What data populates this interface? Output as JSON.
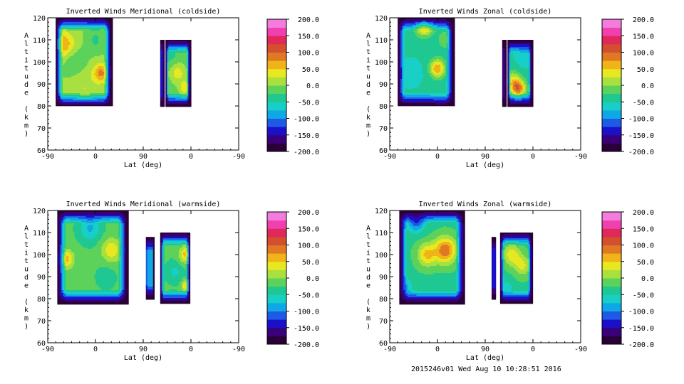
{
  "palette": [
    "#2a0038",
    "#3a007a",
    "#1a10c8",
    "#1e5ae6",
    "#0fa8e6",
    "#18cfc8",
    "#1fc890",
    "#5cd25a",
    "#a8e040",
    "#e8e820",
    "#f0b418",
    "#e07824",
    "#d2502e",
    "#e0285a",
    "#f040b0",
    "#f47cdc"
  ],
  "footer": "2015246v01 Wed Aug 10 10:28:51 2016",
  "chart_data": [
    {
      "type": "heatmap",
      "title": "Inverted Winds Meridional (coldside)",
      "xlabel": "Lat (deg)",
      "ylabel": "Altitude (km)",
      "xticks": [
        "-90",
        "0",
        "90",
        "0",
        "-90"
      ],
      "yticks": [
        "60",
        "70",
        "80",
        "90",
        "100",
        "110",
        "120"
      ],
      "ylim": [
        60,
        120
      ],
      "colorbar_ticks": [
        "200.0",
        "150.0",
        "100.0",
        "50.0",
        "0.0",
        "-50.0",
        "-100.0",
        "-150.0",
        "-200.0"
      ],
      "clim": [
        -200,
        200
      ],
      "regions": [
        {
          "x": [
            -75,
            30
          ],
          "y": [
            80,
            120
          ],
          "base": 0,
          "features": [
            {
              "x": -60,
              "y": 108,
              "v": 70,
              "r": 10
            },
            {
              "x": 10,
              "y": 95,
              "v": 85,
              "r": 7
            },
            {
              "x": -40,
              "y": 100,
              "v": -25,
              "r": 9
            },
            {
              "x": 0,
              "y": 110,
              "v": -30,
              "r": 8
            },
            {
              "x": -20,
              "y": 88,
              "v": 25,
              "r": 12
            }
          ]
        },
        {
          "x": [
            122,
            128
          ],
          "y": [
            80,
            110
          ],
          "base": -130,
          "features": []
        },
        {
          "x": [
            132,
            178
          ],
          "y": [
            80,
            110
          ],
          "base": -15,
          "features": [
            {
              "x": 155,
              "y": 95,
              "v": 35,
              "r": 8
            },
            {
              "x": 170,
              "y": 88,
              "v": 45,
              "r": 6
            },
            {
              "x": 140,
              "y": 103,
              "v": -35,
              "r": 8
            }
          ]
        }
      ]
    },
    {
      "type": "heatmap",
      "title": "Inverted Winds Zonal (coldside)",
      "xlabel": "Lat (deg)",
      "ylabel": "Altitude (km)",
      "xticks": [
        "-90",
        "0",
        "90",
        "0",
        "-90"
      ],
      "yticks": [
        "60",
        "70",
        "80",
        "90",
        "100",
        "110",
        "120"
      ],
      "ylim": [
        60,
        120
      ],
      "colorbar_ticks": [
        "200.0",
        "150.0",
        "100.0",
        "50.0",
        "0.0",
        "-50.0",
        "-100.0",
        "-150.0",
        "-200.0"
      ],
      "clim": [
        -200,
        200
      ],
      "regions": [
        {
          "x": [
            -75,
            30
          ],
          "y": [
            80,
            120
          ],
          "base": -45,
          "features": [
            {
              "x": -25,
              "y": 117,
              "v": 95,
              "r": 8
            },
            {
              "x": 0,
              "y": 97,
              "v": 75,
              "r": 7
            },
            {
              "x": -50,
              "y": 95,
              "v": -75,
              "r": 9
            },
            {
              "x": 15,
              "y": 110,
              "v": -10,
              "r": 8
            }
          ]
        },
        {
          "x": [
            122,
            128
          ],
          "y": [
            80,
            110
          ],
          "base": -160,
          "features": []
        },
        {
          "x": [
            132,
            178
          ],
          "y": [
            80,
            110
          ],
          "base": -45,
          "features": [
            {
              "x": 152,
              "y": 88,
              "v": 95,
              "r": 7
            },
            {
              "x": 140,
              "y": 92,
              "v": 20,
              "r": 7
            },
            {
              "x": 165,
              "y": 103,
              "v": -75,
              "r": 8
            }
          ]
        }
      ]
    },
    {
      "type": "heatmap",
      "title": "Inverted Winds Meridional (warmside)",
      "xlabel": "Lat (deg)",
      "ylabel": "Altitude (km)",
      "xticks": [
        "-90",
        "0",
        "90",
        "0",
        "-90"
      ],
      "yticks": [
        "60",
        "70",
        "80",
        "90",
        "100",
        "110",
        "120"
      ],
      "ylim": [
        60,
        120
      ],
      "colorbar_ticks": [
        "200.0",
        "150.0",
        "100.0",
        "50.0",
        "0.0",
        "-50.0",
        "-100.0",
        "-150.0",
        "-200.0"
      ],
      "clim": [
        -200,
        200
      ],
      "regions": [
        {
          "x": [
            -72,
            60
          ],
          "y": [
            78,
            120
          ],
          "base": -20,
          "features": [
            {
              "x": -55,
              "y": 98,
              "v": 60,
              "r": 7
            },
            {
              "x": 30,
              "y": 102,
              "v": 45,
              "r": 9
            },
            {
              "x": -10,
              "y": 112,
              "v": -80,
              "r": 10
            },
            {
              "x": 20,
              "y": 90,
              "v": -40,
              "r": 9
            }
          ]
        },
        {
          "x": [
            95,
            110
          ],
          "y": [
            80,
            108
          ],
          "base": -95,
          "features": []
        },
        {
          "x": [
            122,
            178
          ],
          "y": [
            78,
            110
          ],
          "base": -20,
          "features": [
            {
              "x": 170,
              "y": 100,
              "v": 60,
              "r": 6
            },
            {
              "x": 150,
              "y": 92,
              "v": -55,
              "r": 8
            },
            {
              "x": 170,
              "y": 86,
              "v": 50,
              "r": 4
            }
          ]
        }
      ]
    },
    {
      "type": "heatmap",
      "title": "Inverted Winds Zonal (warmside)",
      "xlabel": "Lat (deg)",
      "ylabel": "Altitude (km)",
      "xticks": [
        "-90",
        "0",
        "90",
        "0",
        "-90"
      ],
      "yticks": [
        "60",
        "70",
        "80",
        "90",
        "100",
        "110",
        "120"
      ],
      "ylim": [
        60,
        120
      ],
      "colorbar_ticks": [
        "200.0",
        "150.0",
        "100.0",
        "50.0",
        "0.0",
        "-50.0",
        "-100.0",
        "-150.0",
        "-200.0"
      ],
      "clim": [
        -200,
        200
      ],
      "regions": [
        {
          "x": [
            -72,
            50
          ],
          "y": [
            78,
            120
          ],
          "base": -30,
          "features": [
            {
              "x": 15,
              "y": 102,
              "v": 95,
              "r": 10
            },
            {
              "x": -20,
              "y": 100,
              "v": 55,
              "r": 9
            },
            {
              "x": -40,
              "y": 115,
              "v": -120,
              "r": 8
            },
            {
              "x": -60,
              "y": 85,
              "v": -80,
              "r": 7
            }
          ]
        },
        {
          "x": [
            102,
            110
          ],
          "y": [
            80,
            108
          ],
          "base": -140,
          "features": []
        },
        {
          "x": [
            118,
            178
          ],
          "y": [
            78,
            110
          ],
          "base": -30,
          "features": [
            {
              "x": 140,
              "y": 100,
              "v": 40,
              "r": 8
            },
            {
              "x": 160,
              "y": 95,
              "v": 30,
              "r": 8
            },
            {
              "x": 130,
              "y": 85,
              "v": -65,
              "r": 6
            }
          ]
        }
      ]
    }
  ]
}
